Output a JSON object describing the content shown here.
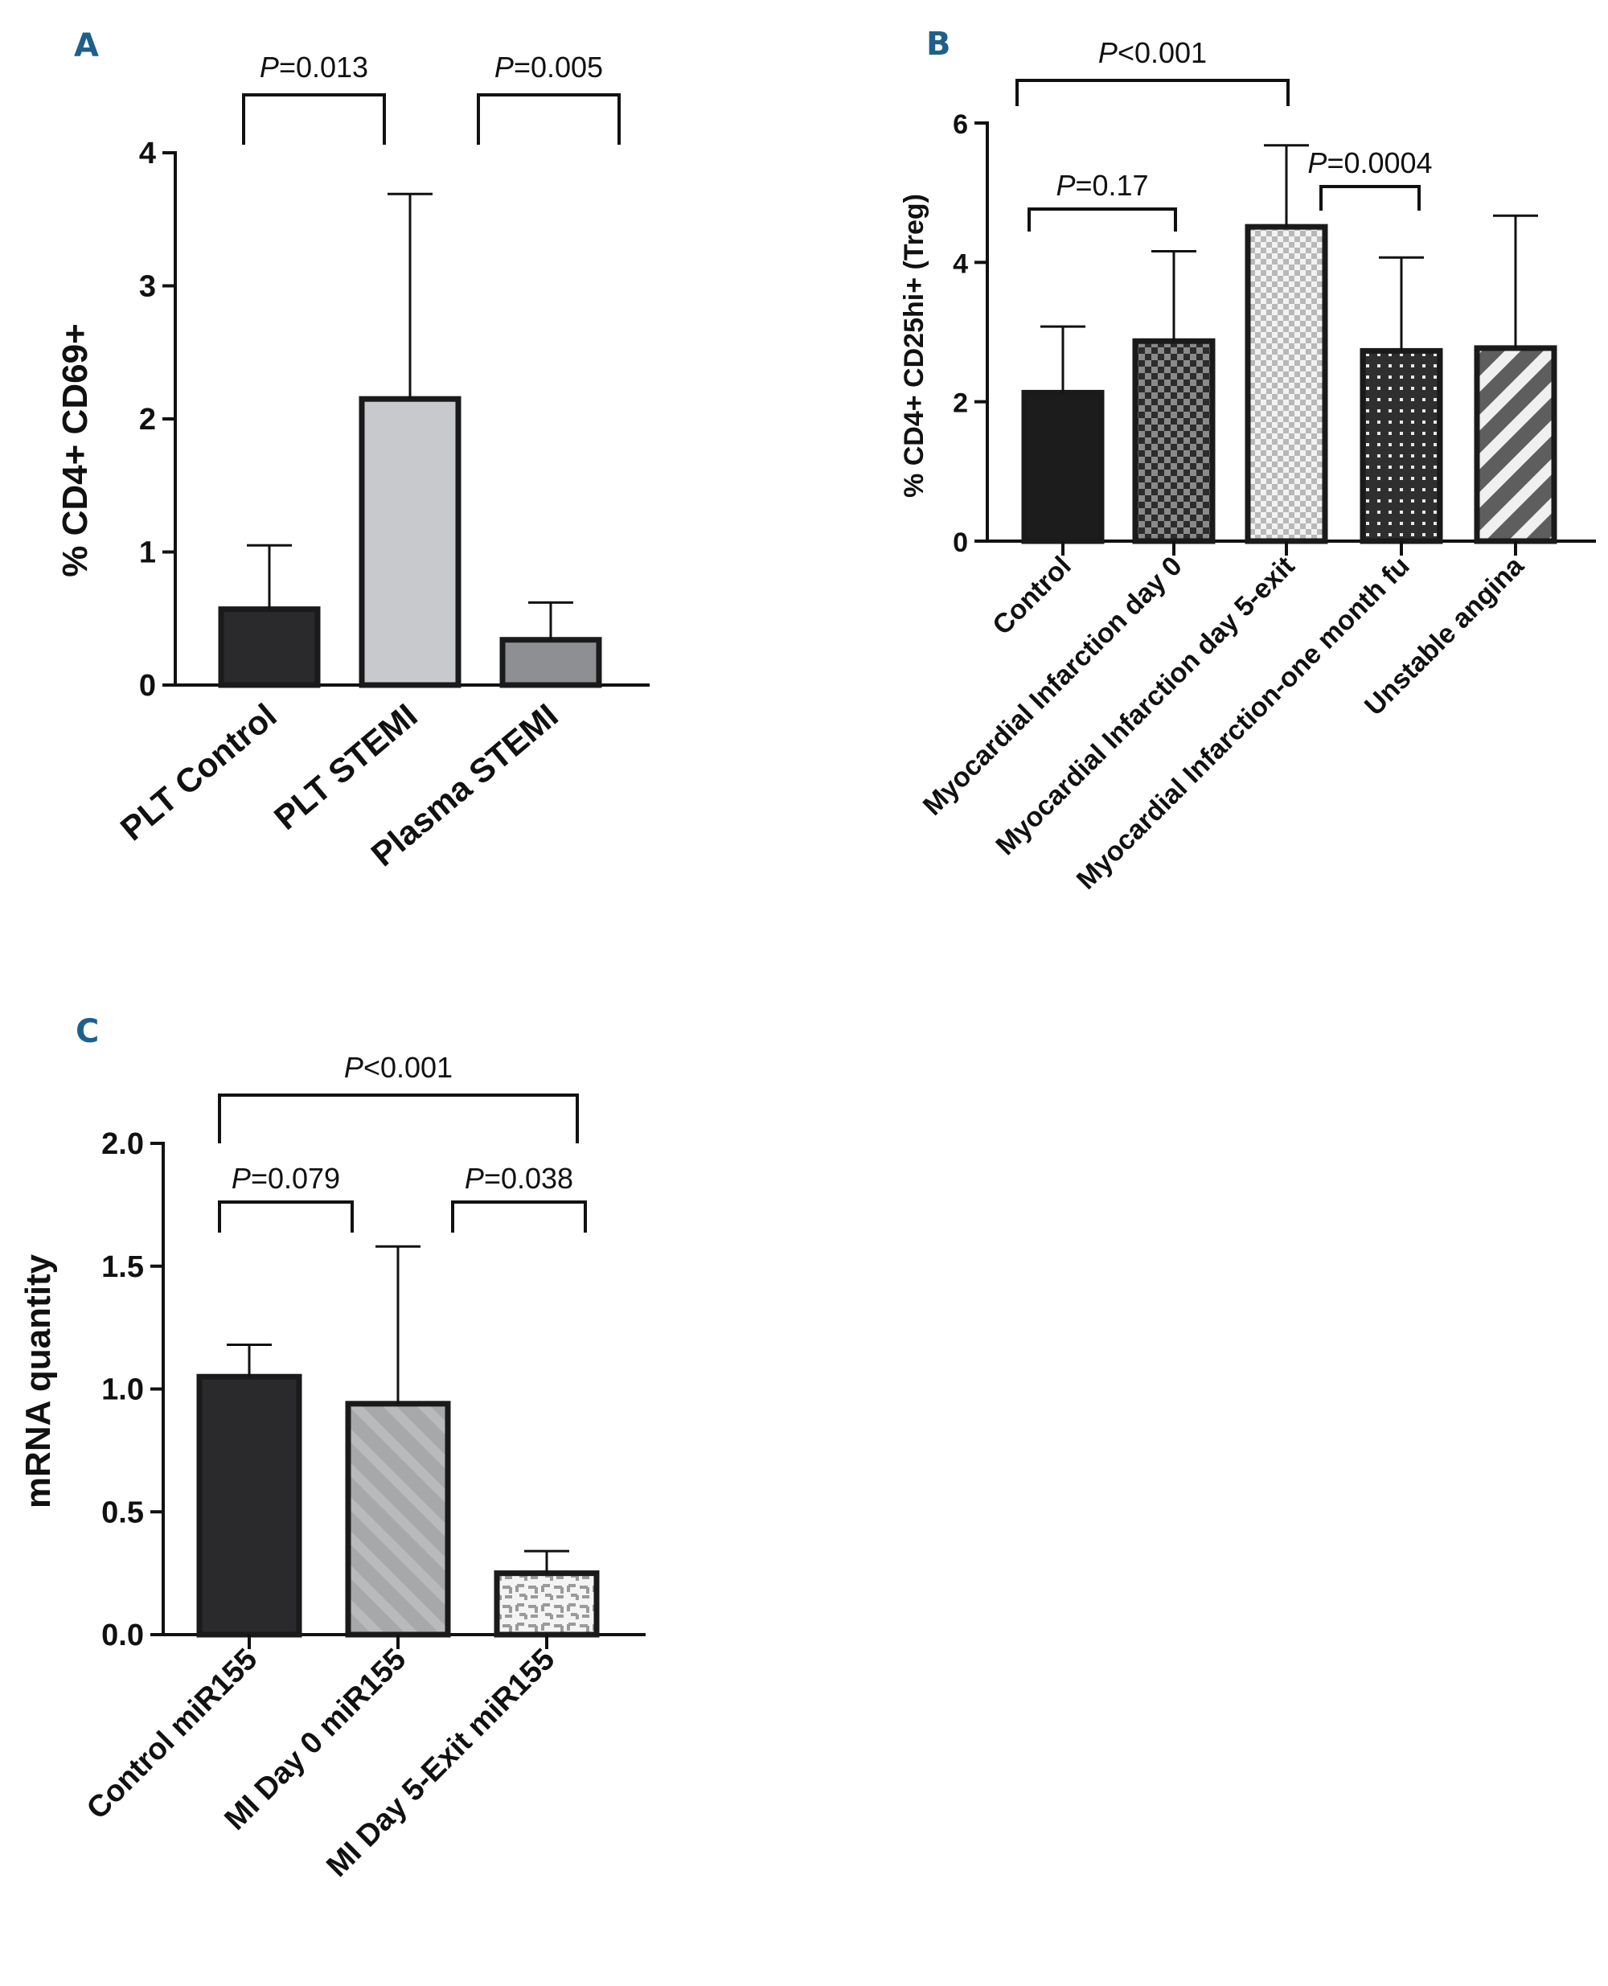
{
  "chart_data": [
    {
      "panel": "A",
      "type": "bar",
      "title": "",
      "ylabel": "% CD4+ CD69+",
      "xlabel": "",
      "ylim": [
        0,
        4
      ],
      "yticks": [
        "0",
        "1",
        "2",
        "3",
        "4"
      ],
      "categories": [
        "PLT Control",
        "PLT STEMI",
        "Plasma STEMI"
      ],
      "values": [
        0.57,
        2.15,
        0.34
      ],
      "errors": [
        0.48,
        1.54,
        0.28
      ],
      "fills": [
        "#2a2a2c",
        "#c8c9cc",
        "#8e8f92"
      ],
      "patterns": [
        "solid",
        "solid",
        "solid"
      ],
      "annotations": [
        {
          "from": 0,
          "to": 1,
          "label": "P=0.013"
        },
        {
          "from": 2,
          "to": 3,
          "label": "P=0.005"
        }
      ]
    },
    {
      "panel": "B",
      "type": "bar",
      "title": "",
      "ylabel": "% CD4+ CD25hi+ (Treg)",
      "xlabel": "",
      "ylim": [
        0,
        6
      ],
      "yticks": [
        "0",
        "2",
        "4",
        "6"
      ],
      "categories": [
        "Control",
        "Myocardial Infarction day 0",
        "Myocardial Infarction day 5-exit",
        "Myocardial Infarction-one month fu",
        "Unstable angina"
      ],
      "values": [
        2.13,
        2.87,
        4.51,
        2.73,
        2.77
      ],
      "errors": [
        0.95,
        1.29,
        1.17,
        1.34,
        1.9
      ],
      "fills": [
        "#1c1c1c",
        "#3a3a3a",
        "#e6e6e6",
        "#2f2f2f",
        "#5e5e5e"
      ],
      "patterns": [
        "solid",
        "checker-dark",
        "checker-light",
        "dots",
        "stripes"
      ],
      "annotations": [
        {
          "from": 0,
          "to": 2,
          "label": "P<0.001"
        },
        {
          "from": 0,
          "to": 1,
          "label": "P=0.17"
        },
        {
          "from": 2,
          "to": 3,
          "label": "P=0.0004"
        }
      ]
    },
    {
      "panel": "C",
      "type": "bar",
      "title": "",
      "ylabel": "mRNA quantity",
      "xlabel": "",
      "ylim": [
        0,
        2.0
      ],
      "yticks": [
        "0.0",
        "0.5",
        "1.0",
        "1.5",
        "2.0"
      ],
      "categories": [
        "Control miR155",
        "MI Day 0 miR155",
        "MI Day 5-Exit miR155"
      ],
      "values": [
        1.05,
        0.94,
        0.25
      ],
      "errors": [
        0.13,
        0.64,
        0.09
      ],
      "fills": [
        "#2a2a2c",
        "#a7a8aa",
        "#f2f2f2"
      ],
      "patterns": [
        "solid",
        "diag-light",
        "maze"
      ],
      "annotations": [
        {
          "from": 0,
          "to": 2,
          "label": "P<0.001"
        },
        {
          "from": 0,
          "to": 1,
          "label": "P=0.079"
        },
        {
          "from": 1,
          "to": 2,
          "label": "P=0.038"
        }
      ]
    }
  ]
}
